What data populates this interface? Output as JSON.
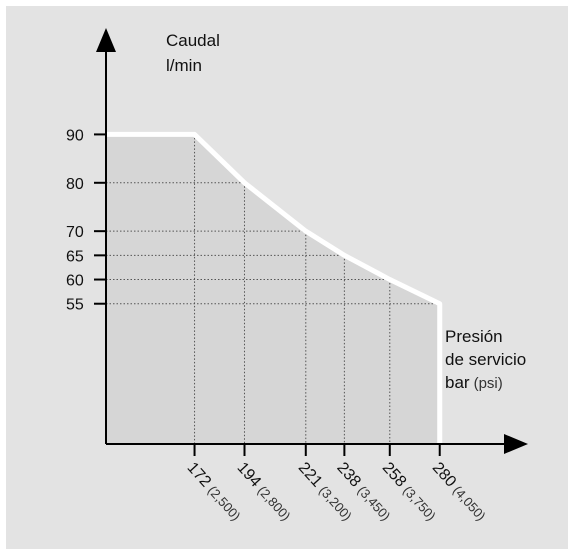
{
  "chart_data": {
    "type": "line",
    "ylabel_line1": "Caudal",
    "ylabel_line2": "l/min",
    "xlabel_line1": "Presión",
    "xlabel_line2": "de servicio",
    "xlabel_unit_main": "bar",
    "xlabel_unit_sub": "(psi)",
    "x_ticks": [
      {
        "bar": 172,
        "label": "172",
        "psi": "(2,500)"
      },
      {
        "bar": 194,
        "label": "194",
        "psi": "(2,800)"
      },
      {
        "bar": 221,
        "label": "221",
        "psi": "(3,200)"
      },
      {
        "bar": 238,
        "label": "238",
        "psi": "(3,450)"
      },
      {
        "bar": 258,
        "label": "258",
        "psi": "(3,750)"
      },
      {
        "bar": 280,
        "label": "280",
        "psi": "(4,050)"
      }
    ],
    "y_ticks": [
      90,
      80,
      70,
      65,
      60,
      55
    ],
    "series": [
      {
        "x": [
          133,
          172,
          194,
          221,
          238,
          258,
          280,
          280
        ],
        "y": [
          90,
          90,
          80,
          70,
          65,
          60,
          55,
          26
        ]
      }
    ],
    "xlim": [
      133,
      318
    ],
    "ylim": [
      26,
      112
    ],
    "grid": "dotted guide lines from each point to the axes",
    "line_color": "#ffffff",
    "fill_color": "#d6d6d6"
  }
}
